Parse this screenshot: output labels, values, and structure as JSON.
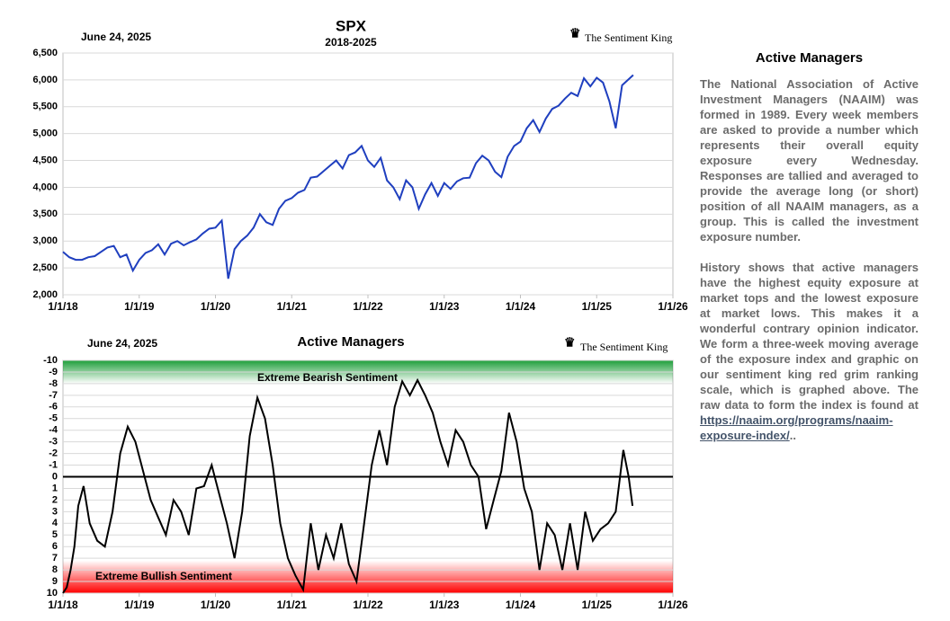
{
  "chart_data": [
    {
      "type": "line",
      "title": "SPX",
      "subtitle": "2018-2025",
      "date": "June 24, 2025",
      "source": "The Sentiment King",
      "x": [
        2018.0,
        2018.083,
        2018.167,
        2018.25,
        2018.333,
        2018.417,
        2018.5,
        2018.583,
        2018.667,
        2018.75,
        2018.833,
        2018.917,
        2019.0,
        2019.083,
        2019.167,
        2019.25,
        2019.333,
        2019.417,
        2019.5,
        2019.583,
        2019.667,
        2019.75,
        2019.833,
        2019.917,
        2020.0,
        2020.083,
        2020.167,
        2020.25,
        2020.333,
        2020.417,
        2020.5,
        2020.583,
        2020.667,
        2020.75,
        2020.833,
        2020.917,
        2021.0,
        2021.083,
        2021.167,
        2021.25,
        2021.333,
        2021.417,
        2021.5,
        2021.583,
        2021.667,
        2021.75,
        2021.833,
        2021.917,
        2022.0,
        2022.083,
        2022.167,
        2022.25,
        2022.333,
        2022.417,
        2022.5,
        2022.583,
        2022.667,
        2022.75,
        2022.833,
        2022.917,
        2023.0,
        2023.083,
        2023.167,
        2023.25,
        2023.333,
        2023.417,
        2023.5,
        2023.583,
        2023.667,
        2023.75,
        2023.833,
        2023.917,
        2024.0,
        2024.083,
        2024.167,
        2024.25,
        2024.333,
        2024.417,
        2024.5,
        2024.583,
        2024.667,
        2024.75,
        2024.833,
        2024.917,
        2025.0,
        2025.083,
        2025.167,
        2025.25,
        2025.333,
        2025.48
      ],
      "series": [
        {
          "name": "SPX",
          "color": "#1f3fbf",
          "values": [
            2800,
            2700,
            2650,
            2650,
            2700,
            2720,
            2800,
            2880,
            2910,
            2700,
            2750,
            2450,
            2650,
            2780,
            2830,
            2940,
            2750,
            2950,
            3000,
            2920,
            2980,
            3030,
            3140,
            3230,
            3250,
            3380,
            2300,
            2850,
            3000,
            3100,
            3250,
            3500,
            3350,
            3300,
            3600,
            3750,
            3800,
            3900,
            3950,
            4180,
            4200,
            4300,
            4400,
            4500,
            4350,
            4600,
            4650,
            4770,
            4500,
            4380,
            4550,
            4130,
            4000,
            3780,
            4130,
            4000,
            3600,
            3870,
            4080,
            3840,
            4080,
            3970,
            4110,
            4170,
            4180,
            4450,
            4590,
            4500,
            4290,
            4190,
            4570,
            4770,
            4850,
            5100,
            5250,
            5030,
            5280,
            5460,
            5520,
            5650,
            5760,
            5700,
            6030,
            5880,
            6040,
            5950,
            5600,
            5100,
            5900,
            6090
          ]
        }
      ],
      "xlim": [
        2018,
        2026
      ],
      "xticks": [
        {
          "value": 2018,
          "label": "1/1/18"
        },
        {
          "value": 2019,
          "label": "1/1/19"
        },
        {
          "value": 2020,
          "label": "1/1/20"
        },
        {
          "value": 2021,
          "label": "1/1/21"
        },
        {
          "value": 2022,
          "label": "1/1/22"
        },
        {
          "value": 2023,
          "label": "1/1/23"
        },
        {
          "value": 2024,
          "label": "1/1/24"
        },
        {
          "value": 2025,
          "label": "1/1/25"
        },
        {
          "value": 2026,
          "label": "1/1/26"
        }
      ],
      "ylim": [
        2000,
        6500
      ],
      "yticks": [
        {
          "value": 2000,
          "label": "2,000"
        },
        {
          "value": 2500,
          "label": "2,500"
        },
        {
          "value": 3000,
          "label": "3,000"
        },
        {
          "value": 3500,
          "label": "3,500"
        },
        {
          "value": 4000,
          "label": "4,000"
        },
        {
          "value": 4500,
          "label": "4,500"
        },
        {
          "value": 5000,
          "label": "5,000"
        },
        {
          "value": 5500,
          "label": "5,500"
        },
        {
          "value": 6000,
          "label": "6,000"
        },
        {
          "value": 6500,
          "label": "6,500"
        }
      ],
      "grid": true
    },
    {
      "type": "line",
      "title": "Active Managers",
      "date": "June 24, 2025",
      "source": "The Sentiment King",
      "annotations": [
        "Extreme Bearish Sentiment",
        "Extreme Bullish Sentiment"
      ],
      "x": [
        2018.0,
        2018.05,
        2018.1,
        2018.15,
        2018.2,
        2018.27,
        2018.35,
        2018.45,
        2018.55,
        2018.65,
        2018.75,
        2018.85,
        2018.95,
        2019.05,
        2019.15,
        2019.25,
        2019.35,
        2019.45,
        2019.55,
        2019.65,
        2019.75,
        2019.85,
        2019.95,
        2020.05,
        2020.15,
        2020.25,
        2020.35,
        2020.45,
        2020.55,
        2020.65,
        2020.75,
        2020.85,
        2020.95,
        2021.05,
        2021.15,
        2021.25,
        2021.35,
        2021.45,
        2021.55,
        2021.65,
        2021.75,
        2021.85,
        2021.95,
        2022.05,
        2022.15,
        2022.25,
        2022.35,
        2022.45,
        2022.55,
        2022.65,
        2022.75,
        2022.85,
        2022.95,
        2023.05,
        2023.15,
        2023.25,
        2023.35,
        2023.45,
        2023.55,
        2023.65,
        2023.75,
        2023.85,
        2023.95,
        2024.05,
        2024.15,
        2024.25,
        2024.35,
        2024.45,
        2024.55,
        2024.65,
        2024.75,
        2024.85,
        2024.95,
        2025.05,
        2025.15,
        2025.25,
        2025.35,
        2025.42,
        2025.47
      ],
      "series": [
        {
          "name": "Active Managers",
          "color": "#000000",
          "values": [
            10,
            9.5,
            8,
            6,
            2.5,
            0.8,
            4,
            5.5,
            6,
            3,
            -2,
            -4.3,
            -3,
            -0.5,
            2,
            3.5,
            5,
            2,
            3,
            5,
            1,
            0.8,
            -1,
            1.5,
            4,
            7,
            3,
            -3.5,
            -6.8,
            -5,
            -1,
            4,
            7,
            8.5,
            9.7,
            4,
            8,
            5,
            7,
            4,
            7.5,
            9,
            4,
            -1,
            -4,
            -1,
            -6,
            -8.2,
            -7,
            -8.3,
            -7,
            -5.5,
            -3,
            -1,
            -4,
            -3,
            -1,
            0,
            4.5,
            2,
            -0.5,
            -5.5,
            -3,
            1,
            3,
            8,
            4,
            5,
            8,
            4,
            8,
            3,
            5.5,
            4.5,
            4,
            3,
            -2.3,
            0,
            2.5
          ]
        }
      ],
      "xlim": [
        2018,
        2026
      ],
      "xticks": [
        {
          "value": 2018,
          "label": "1/1/18"
        },
        {
          "value": 2019,
          "label": "1/1/19"
        },
        {
          "value": 2020,
          "label": "1/1/20"
        },
        {
          "value": 2021,
          "label": "1/1/21"
        },
        {
          "value": 2022,
          "label": "1/1/22"
        },
        {
          "value": 2023,
          "label": "1/1/23"
        },
        {
          "value": 2024,
          "label": "1/1/24"
        },
        {
          "value": 2025,
          "label": "1/1/25"
        },
        {
          "value": 2026,
          "label": "1/1/26"
        }
      ],
      "ylim": [
        -10,
        10
      ],
      "y_inverted": true,
      "yticks": [
        -10,
        -9,
        -8,
        -7,
        -6,
        -5,
        -4,
        -3,
        -2,
        -1,
        0,
        1,
        2,
        3,
        4,
        5,
        6,
        7,
        8,
        9,
        10
      ],
      "grid": true
    }
  ],
  "article": {
    "title": "Active Managers",
    "paragraphs": [
      "The National Association of Active Investment Managers (NAAIM) was formed in 1989. Every week members are asked to provide a number which represents their overall equity exposure every Wednesday. Responses are tallied and averaged to provide the average long (or short) position of all NAAIM managers, as a group. This is called the investment exposure number.",
      "History shows that active managers have the highest equity exposure at market tops and the lowest exposure at market lows. This makes it a wonderful contrary opinion indicator. We form a three-week moving average of the exposure index and graphic on our sentiment king red grim ranking scale, which is graphed above. The raw data to form the index is found at "
    ],
    "link": "https://naaim.org/programs/naaim-exposure-index/",
    "link_suffix": ".."
  }
}
